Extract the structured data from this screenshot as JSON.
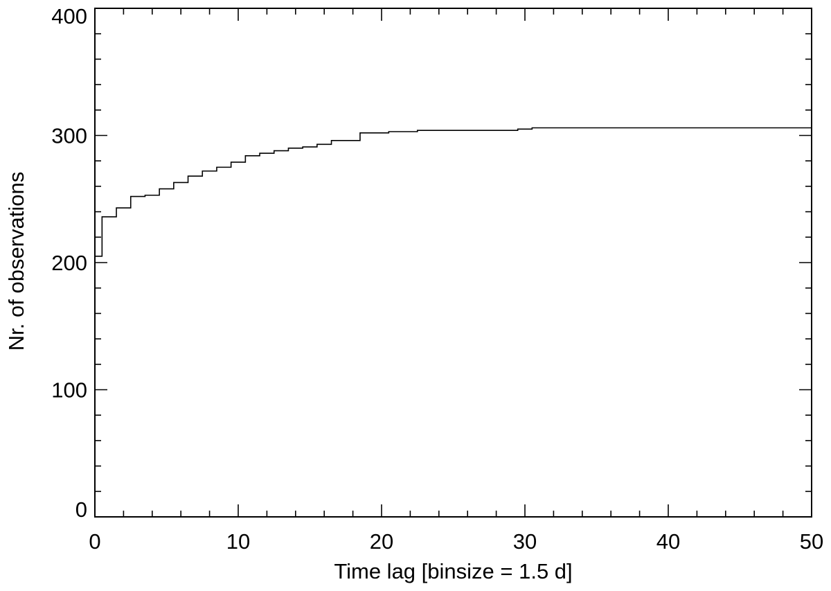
{
  "chart_data": {
    "type": "line",
    "step": true,
    "xlabel": "Time lag [binsize = 1.5 d]",
    "ylabel": "Nr. of observations",
    "xlim": [
      0,
      50
    ],
    "ylim": [
      0,
      400
    ],
    "x_ticks": [
      0,
      10,
      20,
      30,
      40,
      50
    ],
    "x_tick_labels": [
      "0",
      "10",
      "20",
      "30",
      "40",
      "50"
    ],
    "x_minor_step": 2,
    "y_ticks": [
      0,
      100,
      200,
      300,
      400
    ],
    "y_tick_labels": [
      "0",
      "100",
      "200",
      "300",
      "400"
    ],
    "y_minor_step": 20,
    "grid": false,
    "x": [
      0,
      0.5,
      1.5,
      2.5,
      3.5,
      4.5,
      5.5,
      6.5,
      7.5,
      8.5,
      9.5,
      10.5,
      11.5,
      12.5,
      13.5,
      14.5,
      15.5,
      16.5,
      17.5,
      18.5,
      19.5,
      20.5,
      21.5,
      22.5,
      23.5,
      24.5,
      25.5,
      26.5,
      27.5,
      28.5,
      29.5,
      30.5,
      31.5,
      50
    ],
    "values": [
      205,
      236,
      243,
      252,
      253,
      258,
      263,
      268,
      272,
      275,
      279,
      284,
      286,
      288,
      290,
      291,
      293,
      296,
      296,
      302,
      302,
      303,
      303,
      304,
      304,
      304,
      304,
      304,
      304,
      304,
      305,
      306,
      306,
      306
    ],
    "color": "#000000"
  }
}
